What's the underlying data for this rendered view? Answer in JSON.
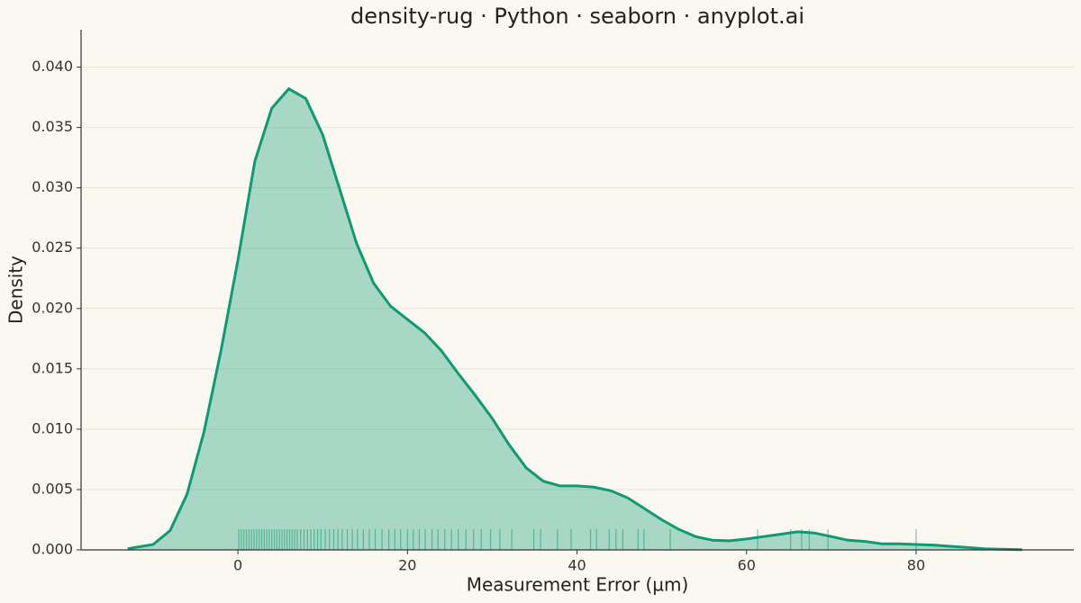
{
  "chart_data": {
    "type": "density-rug",
    "title": "density-rug · Python · seaborn · anyplot.ai",
    "xlabel": "Measurement Error (µm)",
    "ylabel": "Density",
    "xlim": [
      -18.5,
      98.6
    ],
    "ylim": [
      0,
      0.0431
    ],
    "xticks": [
      0,
      20,
      40,
      60,
      80
    ],
    "yticks": [
      {
        "value": 0,
        "label": "0.000"
      },
      {
        "value": 0.005,
        "label": "0.005"
      },
      {
        "value": 0.01,
        "label": "0.010"
      },
      {
        "value": 0.015,
        "label": "0.015"
      },
      {
        "value": 0.02,
        "label": "0.020"
      },
      {
        "value": 0.025,
        "label": "0.025"
      },
      {
        "value": 0.03,
        "label": "0.030"
      },
      {
        "value": 0.035,
        "label": "0.035"
      },
      {
        "value": 0.04,
        "label": "0.040"
      }
    ],
    "grid": true,
    "series": [
      {
        "color": "#0e9a72",
        "x": [
          -13,
          -10,
          -8,
          -6,
          -4,
          -2,
          0,
          2,
          4,
          6,
          8,
          10,
          12,
          14,
          16,
          18,
          20,
          22,
          24,
          26,
          28,
          30,
          32,
          34,
          36,
          38,
          40,
          42,
          44,
          46,
          48,
          50,
          52,
          54,
          56,
          58,
          60,
          62,
          64,
          66,
          68,
          70,
          72,
          74,
          76,
          78,
          80,
          82,
          84,
          86,
          88,
          90,
          92.5
        ],
        "values": [
          0.0001,
          0.00045,
          0.0016,
          0.0046,
          0.0098,
          0.0165,
          0.024,
          0.0322,
          0.0366,
          0.0382,
          0.0374,
          0.0344,
          0.0299,
          0.0254,
          0.0221,
          0.0202,
          0.0191,
          0.018,
          0.0165,
          0.0146,
          0.0128,
          0.0109,
          0.0087,
          0.0068,
          0.0057,
          0.0053,
          0.0053,
          0.0052,
          0.0049,
          0.0043,
          0.0034,
          0.0025,
          0.0017,
          0.0011,
          0.0008,
          0.00075,
          0.0009,
          0.0011,
          0.0013,
          0.0015,
          0.0014,
          0.0011,
          0.0008,
          0.0007,
          0.0005,
          0.0005,
          0.00045,
          0.0004,
          0.0003,
          0.0002,
          0.0001,
          5e-05,
          2e-05
        ]
      }
    ],
    "rug": {
      "color": "#0e9a72",
      "values": [
        0.1,
        0.4,
        0.7,
        1.0,
        1.3,
        1.6,
        1.9,
        2.2,
        2.5,
        2.8,
        3.1,
        3.4,
        3.7,
        4.0,
        4.3,
        4.6,
        4.9,
        5.2,
        5.5,
        5.8,
        6.1,
        6.4,
        6.7,
        7.0,
        7.4,
        7.8,
        8.2,
        8.6,
        9.0,
        9.4,
        9.8,
        10.3,
        10.8,
        11.3,
        11.8,
        12.3,
        12.9,
        13.5,
        14.1,
        14.8,
        15.5,
        16.2,
        17.0,
        17.8,
        18.5,
        19.2,
        20.0,
        20.7,
        21.4,
        22.1,
        22.9,
        23.6,
        24.4,
        25.2,
        26.0,
        26.9,
        27.8,
        28.7,
        29.8,
        30.9,
        32.3,
        34.9,
        35.7,
        37.7,
        39.3,
        41.6,
        42.3,
        43.8,
        44.6,
        45.4,
        47.2,
        47.9,
        51.0,
        61.3,
        65.2,
        66.5,
        67.4,
        69.6,
        80.0
      ]
    }
  }
}
